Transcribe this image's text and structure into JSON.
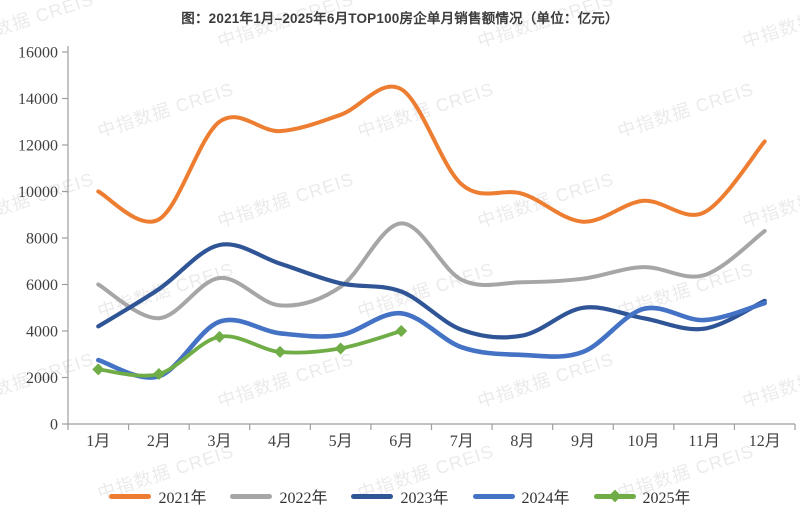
{
  "page": {
    "title": "图：2021年1月–2025年6月TOP100房企单月销售额情况（单位：亿元）"
  },
  "watermark": {
    "text": "中指数据 CREIS"
  },
  "colors": {
    "series_2021": "#ED7D31",
    "series_2022": "#A6A6A6",
    "series_2023": "#2F5597",
    "series_2024": "#4472C4",
    "series_2025": "#70AD47",
    "axis_line": "#9E9E9E",
    "tick_label": "#404040"
  },
  "chart_data": {
    "type": "line",
    "title": "图：2021年1月–2025年6月TOP100房企单月销售额情况（单位：亿元）",
    "xlabel": "",
    "ylabel": "",
    "unit": "亿元",
    "grid": false,
    "legend_position": "bottom",
    "ylim": [
      0,
      16000
    ],
    "ytick_step": 2000,
    "y_tick_labels": [
      "0",
      "2000",
      "4000",
      "6000",
      "8000",
      "10000",
      "12000",
      "14000",
      "16000"
    ],
    "categories": [
      "1月",
      "2月",
      "3月",
      "4月",
      "5月",
      "6月",
      "7月",
      "8月",
      "9月",
      "10月",
      "11月",
      "12月"
    ],
    "series": [
      {
        "name": "2021年",
        "color": "#ED7D31",
        "marker": "none",
        "values": [
          10000,
          8800,
          13000,
          12600,
          13300,
          14400,
          10300,
          9900,
          8700,
          9600,
          9100,
          12150
        ]
      },
      {
        "name": "2022年",
        "color": "#A6A6A6",
        "marker": "none",
        "values": [
          6000,
          4550,
          6280,
          5100,
          5900,
          8630,
          6200,
          6100,
          6250,
          6750,
          6400,
          8300
        ]
      },
      {
        "name": "2023年",
        "color": "#2F5597",
        "marker": "none",
        "values": [
          4200,
          5800,
          7700,
          6900,
          6050,
          5700,
          4050,
          3800,
          5000,
          4550,
          4100,
          5300
        ]
      },
      {
        "name": "2024年",
        "color": "#4472C4",
        "marker": "none",
        "values": [
          2750,
          2050,
          4400,
          3900,
          3830,
          4760,
          3300,
          2970,
          3100,
          4950,
          4470,
          5200
        ]
      },
      {
        "name": "2025年",
        "color": "#70AD47",
        "marker": "diamond",
        "values": [
          2350,
          2150,
          3750,
          3100,
          3250,
          4000
        ]
      }
    ]
  }
}
